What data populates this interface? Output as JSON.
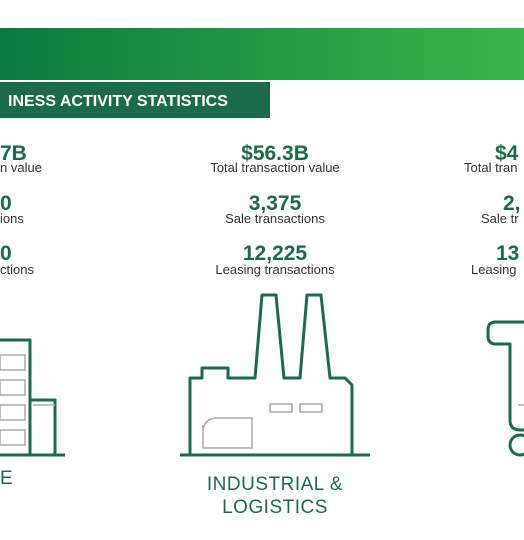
{
  "banner": {
    "title": "INESS ACTIVITY STATISTICS"
  },
  "columns": [
    {
      "value": "7B",
      "value_caption": "n value",
      "sales": "0",
      "sales_caption": "ions",
      "leasing": "0",
      "leasing_caption": "ctions",
      "category": "E"
    },
    {
      "value": "$56.3B",
      "value_caption": "Total transaction value",
      "sales": "3,375",
      "sales_caption": "Sale transactions",
      "leasing": "12,225",
      "leasing_caption": "Leasing transactions",
      "category": "INDUSTRIAL &",
      "category_line2": "LOGISTICS"
    },
    {
      "value": "$4",
      "value_caption": "Total tran",
      "sales": "2,",
      "sales_caption": "Sale tr",
      "leasing": "13",
      "leasing_caption": "Leasing"
    }
  ]
}
